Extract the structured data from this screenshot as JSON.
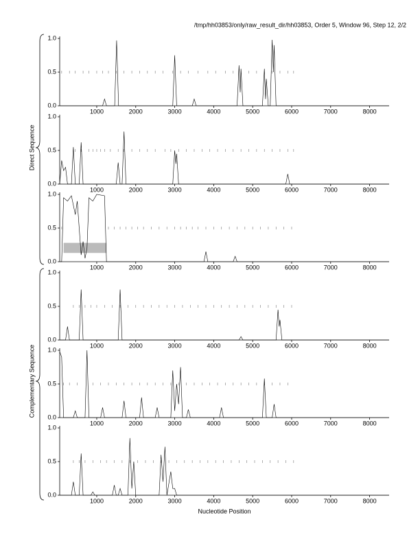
{
  "header": "/tmp/hh03853/only/raw_result_dir/hh03853, Order 5, Window 96, Step 12, 2/2",
  "xlabel": "Nucleotide Position",
  "y_groups": [
    "Direct Sequence",
    "Complementary Sequence"
  ],
  "chart_data": [
    {
      "type": "line",
      "color": "#000000",
      "xlim": [
        50,
        8500
      ],
      "ylim": [
        0,
        1
      ],
      "xticks": [
        1000,
        2000,
        3000,
        4000,
        5000,
        6000,
        7000,
        8000
      ],
      "yticks": [
        {
          "value": 0,
          "label": "0.0"
        },
        {
          "value": 0.5,
          "label": "0.5"
        },
        {
          "value": 1,
          "label": "1.0"
        }
      ],
      "x": [
        50,
        1150,
        1200,
        1250,
        1460,
        1510,
        1560,
        2950,
        3000,
        3050,
        3450,
        3500,
        3550,
        4600,
        4650,
        4680,
        4700,
        4750,
        5250,
        5300,
        5330,
        5350,
        5400,
        5450,
        5500,
        5530,
        5550,
        5600,
        8500
      ],
      "values": [
        0,
        0,
        0.1,
        0,
        0,
        0.97,
        0,
        0,
        0.75,
        0,
        0,
        0.1,
        0,
        0,
        0.6,
        0.2,
        0.55,
        0,
        0,
        0.55,
        0.1,
        0.4,
        0,
        0,
        0.98,
        0.5,
        0.9,
        0,
        0
      ],
      "markers": [
        100,
        300,
        450,
        650,
        800,
        1000,
        1150,
        1300,
        1500,
        1700,
        1900,
        2100,
        2300,
        2500,
        2700,
        2950,
        3150,
        3350,
        3600,
        3850,
        4050,
        4300,
        4500,
        4700,
        4900,
        5100,
        5300,
        5500,
        5700,
        5900,
        6050
      ]
    },
    {
      "type": "line",
      "color": "#000000",
      "xlim": [
        50,
        8500
      ],
      "ylim": [
        0,
        1
      ],
      "xticks": [
        1000,
        2000,
        3000,
        4000,
        5000,
        6000,
        7000,
        8000
      ],
      "yticks": [
        {
          "value": 0,
          "label": "0.0"
        },
        {
          "value": 0.5,
          "label": "0.5"
        },
        {
          "value": 1,
          "label": "1.0"
        }
      ],
      "x": [
        50,
        100,
        150,
        200,
        250,
        350,
        400,
        450,
        550,
        600,
        650,
        1500,
        1550,
        1600,
        1650,
        1700,
        1750,
        2950,
        3000,
        3030,
        3050,
        3100,
        5850,
        5900,
        5950,
        8500
      ],
      "values": [
        0,
        0.35,
        0.2,
        0.25,
        0,
        0,
        0.55,
        0,
        0,
        0.62,
        0,
        0,
        0.32,
        0,
        0,
        0.78,
        0,
        0,
        0.5,
        0.3,
        0.45,
        0,
        0,
        0.15,
        0,
        0
      ],
      "markers": [
        450,
        600,
        800,
        900,
        1000,
        1100,
        1200,
        1350,
        1550,
        1700,
        1900,
        2100,
        2300,
        2500,
        2750,
        2900,
        3100,
        3300,
        3500,
        3700,
        3900,
        4100,
        4300,
        4500,
        4700,
        4900,
        5100,
        5300,
        5500,
        5700,
        5900,
        6050
      ]
    },
    {
      "type": "line",
      "color": "#000000",
      "xlim": [
        50,
        8500
      ],
      "ylim": [
        0,
        1
      ],
      "xticks": [
        1000,
        2000,
        3000,
        4000,
        5000,
        6000,
        7000,
        8000
      ],
      "yticks": [
        {
          "value": 0,
          "label": "0.0"
        },
        {
          "value": 0.5,
          "label": "0.5"
        },
        {
          "value": 1,
          "label": "1.0"
        }
      ],
      "x": [
        50,
        100,
        150,
        250,
        350,
        450,
        500,
        600,
        650,
        700,
        750,
        800,
        900,
        1000,
        1200,
        1250,
        3750,
        3800,
        3850,
        4500,
        4550,
        4600,
        8500
      ],
      "values": [
        0,
        0,
        0.95,
        0.9,
        0.98,
        0.7,
        0.9,
        0.1,
        0.3,
        0.05,
        0.2,
        0.95,
        0.9,
        1.0,
        0.98,
        0,
        0,
        0.15,
        0,
        0,
        0.08,
        0,
        0
      ],
      "shaded_region": {
        "x": [
          150,
          1250
        ],
        "y": [
          0.13,
          0.28
        ],
        "color": "#bbbbbb"
      },
      "markers": [
        100,
        1300,
        1450,
        1600,
        1750,
        1900,
        2050,
        2200,
        2400,
        2600,
        2800,
        3000,
        3150,
        3300,
        3450,
        3600,
        3800,
        4000,
        4200,
        4400,
        4600,
        4800,
        5000,
        5200,
        5400,
        5600,
        5800,
        6000
      ]
    },
    {
      "type": "line",
      "color": "#000000",
      "xlim": [
        50,
        8500
      ],
      "ylim": [
        0,
        1
      ],
      "xticks": [
        1000,
        2000,
        3000,
        4000,
        5000,
        6000,
        7000,
        8000
      ],
      "yticks": [
        {
          "value": 0,
          "label": "0.0"
        },
        {
          "value": 0.5,
          "label": "0.5"
        },
        {
          "value": 1,
          "label": "1.0"
        }
      ],
      "x": [
        50,
        200,
        250,
        300,
        550,
        600,
        650,
        1550,
        1600,
        1650,
        4650,
        4700,
        4750,
        5600,
        5650,
        5680,
        5700,
        5750,
        8500
      ],
      "values": [
        0,
        0,
        0.2,
        0,
        0,
        0.75,
        0,
        0,
        0.75,
        0,
        0,
        0.05,
        0,
        0,
        0.45,
        0.2,
        0.3,
        0,
        0
      ],
      "markers": [
        400,
        550,
        700,
        850,
        1000,
        1200,
        1400,
        1600,
        1800,
        2000,
        2200,
        2400,
        2600,
        2800,
        3000,
        3200,
        3400,
        3600,
        3800,
        4000,
        4200,
        4400,
        4600,
        4800,
        5000,
        5200,
        5400,
        5600,
        5800,
        6000
      ]
    },
    {
      "type": "line",
      "color": "#000000",
      "xlim": [
        50,
        8500
      ],
      "ylim": [
        0,
        1
      ],
      "xticks": [
        1000,
        2000,
        3000,
        4000,
        5000,
        6000,
        7000,
        8000
      ],
      "yticks": [
        {
          "value": 0,
          "label": "0.0"
        },
        {
          "value": 0.5,
          "label": "0.5"
        },
        {
          "value": 1,
          "label": "1.0"
        }
      ],
      "x": [
        50,
        100,
        150,
        400,
        450,
        500,
        700,
        750,
        800,
        1100,
        1150,
        1200,
        1650,
        1700,
        1750,
        2100,
        2150,
        2200,
        2500,
        2550,
        2600,
        2900,
        2950,
        3000,
        3050,
        3100,
        3150,
        3200,
        3300,
        3350,
        3400,
        4150,
        4200,
        4250,
        5250,
        5300,
        5350,
        5500,
        5550,
        5600,
        8500
      ],
      "values": [
        0.98,
        0.9,
        0,
        0,
        0.1,
        0,
        0,
        1.0,
        0,
        0,
        0.15,
        0,
        0,
        0.25,
        0,
        0,
        0.3,
        0,
        0,
        0.15,
        0,
        0,
        0.7,
        0.1,
        0.5,
        0.2,
        0.75,
        0,
        0,
        0.12,
        0,
        0,
        0.15,
        0,
        0,
        0.58,
        0,
        0,
        0.2,
        0,
        0
      ],
      "markers": [
        150,
        300,
        500,
        900,
        1100,
        1300,
        1500,
        1700,
        1900,
        2100,
        2300,
        2500,
        2700,
        2900,
        3100,
        3300,
        3500,
        3700,
        3900,
        4100,
        4300,
        4500,
        4700,
        4900,
        5100,
        5300,
        5500,
        5700,
        5900
      ]
    },
    {
      "type": "line",
      "color": "#000000",
      "xlim": [
        50,
        8500
      ],
      "ylim": [
        0,
        1
      ],
      "xticks": [
        1000,
        2000,
        3000,
        4000,
        5000,
        6000,
        7000,
        8000
      ],
      "yticks": [
        {
          "value": 0,
          "label": "0.0"
        },
        {
          "value": 0.5,
          "label": "0.5"
        },
        {
          "value": 1,
          "label": "1.0"
        }
      ],
      "x": [
        50,
        350,
        400,
        450,
        550,
        600,
        650,
        850,
        900,
        950,
        1400,
        1450,
        1500,
        1550,
        1600,
        1650,
        1800,
        1850,
        1900,
        1950,
        2000,
        2600,
        2650,
        2700,
        2750,
        2800,
        2900,
        2950,
        3000,
        3050,
        8500
      ],
      "values": [
        0,
        0,
        0.2,
        0,
        0,
        0.62,
        0,
        0,
        0.05,
        0,
        0,
        0.15,
        0,
        0,
        0.1,
        0,
        0,
        0.85,
        0.1,
        0.5,
        0,
        0,
        0.6,
        0.2,
        0.72,
        0,
        0.35,
        0.1,
        0.1,
        0,
        0
      ],
      "markers": [
        400,
        550,
        700,
        900,
        1100,
        1250,
        1450,
        1650,
        1850,
        2050,
        2250,
        2450,
        2650,
        2850,
        3050,
        3250,
        3450,
        3650,
        3850,
        4050,
        4250,
        4450,
        4650,
        4850,
        5050,
        5250,
        5450,
        5650,
        5850,
        6050
      ]
    }
  ]
}
